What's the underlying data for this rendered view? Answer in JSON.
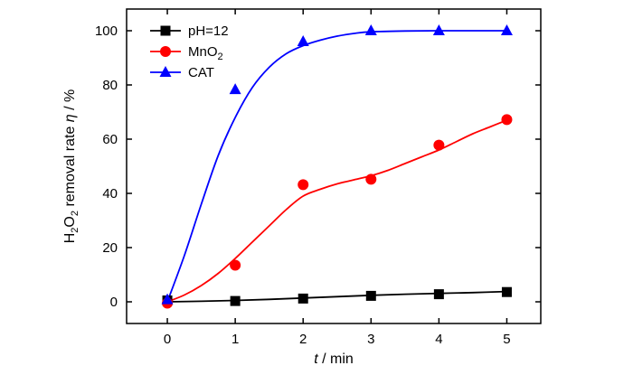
{
  "chart_data": {
    "type": "scatter",
    "xlabel": {
      "var": "t",
      "unit": " / min"
    },
    "ylabel": {
      "prefix": "H",
      "sub1": "2",
      "mid": "O",
      "sub2": "2",
      "rest": " removal rate ",
      "var": "η",
      "unit": " / %"
    },
    "xlim": [
      -0.6,
      5.5
    ],
    "ylim": [
      -8,
      108
    ],
    "xticks": [
      0,
      1,
      2,
      3,
      4,
      5
    ],
    "yticks": [
      0,
      20,
      40,
      60,
      80,
      100
    ],
    "legend_position": "top-left",
    "series": [
      {
        "name": "pH=12",
        "legend": {
          "base": "pH=12",
          "sub": ""
        },
        "color": "#000000",
        "marker": "square",
        "points": {
          "x": [
            0,
            1,
            2,
            3,
            4,
            5
          ],
          "y": [
            0.5,
            0.3,
            1.2,
            2.2,
            2.8,
            3.6
          ]
        },
        "fit": {
          "x": [
            0,
            0.5,
            1,
            1.5,
            2,
            2.5,
            3,
            3.5,
            4,
            4.5,
            5
          ],
          "y": [
            0,
            0.2,
            0.5,
            0.9,
            1.4,
            1.9,
            2.4,
            2.8,
            3.1,
            3.4,
            3.8
          ]
        }
      },
      {
        "name": "MnO2",
        "legend": {
          "base": "MnO",
          "sub": "2"
        },
        "color": "#ff0000",
        "marker": "circle",
        "points": {
          "x": [
            0,
            1,
            2,
            3,
            4,
            5
          ],
          "y": [
            -0.5,
            13.5,
            43.2,
            45.2,
            57.8,
            67.2
          ]
        },
        "fit": {
          "x": [
            0,
            0.25,
            0.5,
            0.75,
            1,
            1.25,
            1.5,
            1.75,
            2,
            2.25,
            2.5,
            2.75,
            3,
            3.25,
            3.5,
            3.75,
            4,
            4.25,
            4.5,
            4.75,
            5
          ],
          "y": [
            0,
            2.5,
            6,
            10.5,
            16,
            22,
            28,
            34,
            39,
            41.5,
            43.5,
            45,
            46.5,
            48.5,
            51,
            53.5,
            56,
            59,
            62,
            64.5,
            67
          ]
        }
      },
      {
        "name": "CAT",
        "legend": {
          "base": "CAT",
          "sub": ""
        },
        "color": "#0000ff",
        "marker": "triangle",
        "points": {
          "x": [
            0,
            1,
            2,
            3,
            4,
            5
          ],
          "y": [
            0.8,
            78.3,
            96,
            100,
            100,
            100
          ]
        },
        "fit": {
          "x": [
            0,
            0.25,
            0.5,
            0.75,
            1,
            1.25,
            1.5,
            1.75,
            2,
            2.25,
            2.5,
            2.75,
            3,
            3.5,
            4,
            4.5,
            5
          ],
          "y": [
            0,
            17,
            36,
            54,
            68,
            79,
            86.5,
            91.5,
            94.5,
            96.5,
            98,
            99,
            99.6,
            99.9,
            100,
            100,
            100
          ]
        }
      }
    ]
  }
}
